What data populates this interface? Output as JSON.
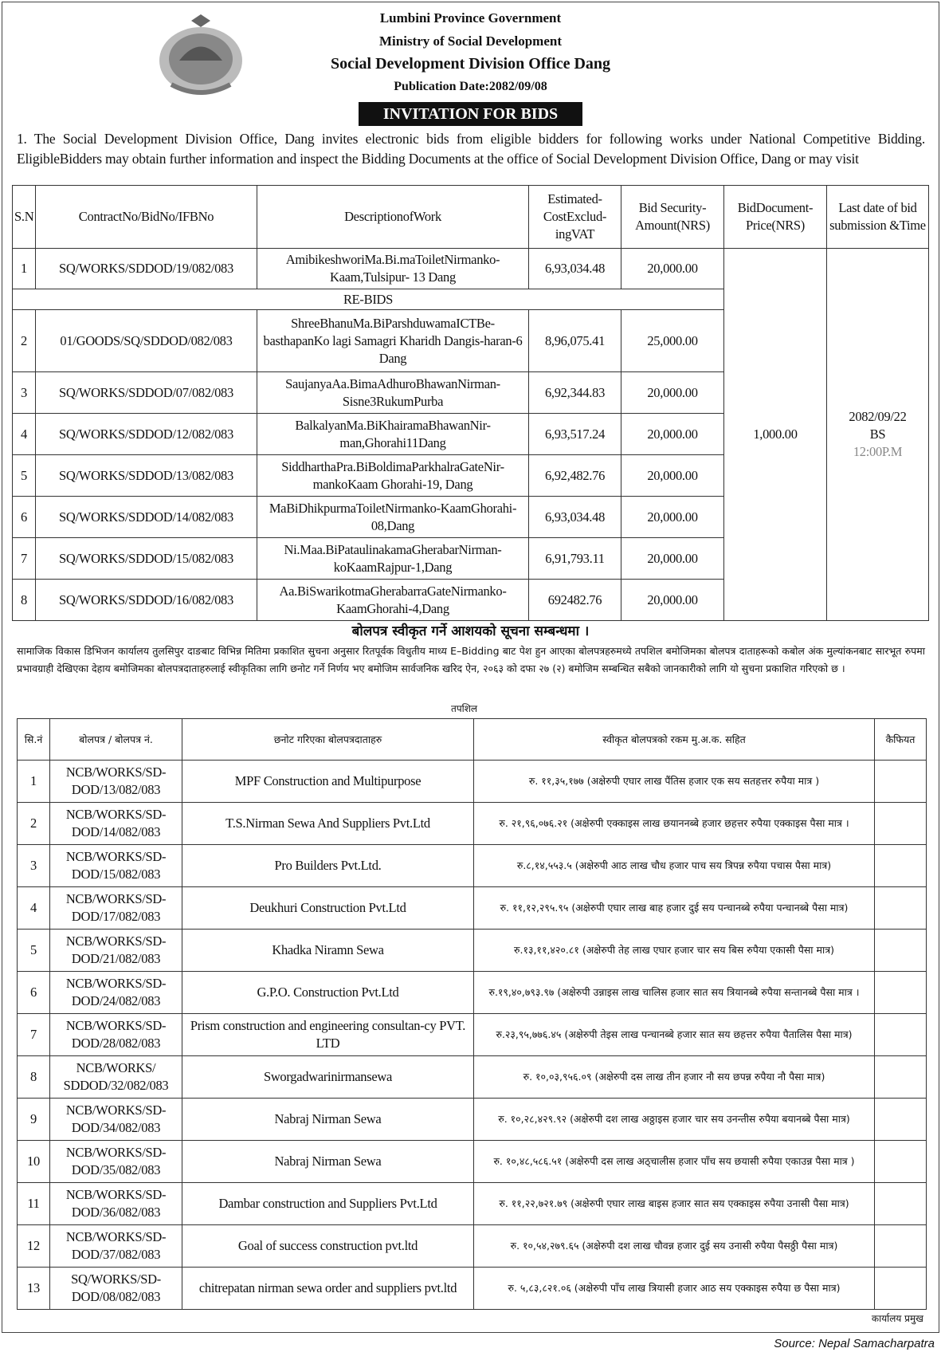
{
  "header": {
    "line1": "Lumbini Province Government",
    "line2": "Ministry of Social Development",
    "line3": "Social Development Division Office Dang",
    "publication": "Publication Date:2082/09/08",
    "banner": "INVITATION FOR BIDS"
  },
  "intro": "1.        The Social Development Division Office, Dang invites electronic bids from eligible bidders for following works under National Competitive Bidding. EligibleBidders may obtain further information and inspect the Bidding Documents at the office of Social Development Division Office, Dang or may visit",
  "bids_table": {
    "headers": [
      "S.N",
      "ContractNo/BidNo/IFBNo",
      "DescriptionofWork",
      "Estimated-CostExclud-ingVAT",
      "Bid Security-Amount(NRS)",
      "BidDocument-Price(NRS)",
      "Last date of bid submission &Time"
    ],
    "rebids_label": "RE-BIDS",
    "doc_price": "1,000.00",
    "last_date": "2082/09/22",
    "last_date_suffix": "BS",
    "last_time": "12:00P.M",
    "rows": [
      {
        "sn": "1",
        "contract": "SQ/WORKS/SDDOD/19/082/083",
        "desc": "AmibikeshworiMa.Bi.maToiletNirmanko-Kaam,Tulsipur- 13 Dang",
        "cost": "6,93,034.48",
        "security": "20,000.00"
      },
      {
        "sn": "2",
        "contract": "01/GOODS/SQ/SDDOD/082/083",
        "desc": "ShreeBhanuMa.BiParshduwamaICTBe-basthapanKo lagi Samagri Kharidh Dangis-haran-6 Dang",
        "cost": "8,96,075.41",
        "security": "25,000.00"
      },
      {
        "sn": "3",
        "contract": "SQ/WORKS/SDDOD/07/082/083",
        "desc": "SaujanyaAa.BimaAdhuroBhawanNirman-Sisne3RukumPurba",
        "cost": "6,92,344.83",
        "security": "20,000.00"
      },
      {
        "sn": "4",
        "contract": "SQ/WORKS/SDDOD/12/082/083",
        "desc": "BalkalyanMa.BiKhairamaBhawanNir-man,Ghorahi11Dang",
        "cost": "6,93,517.24",
        "security": "20,000.00"
      },
      {
        "sn": "5",
        "contract": "SQ/WORKS/SDDOD/13/082/083",
        "desc": "SiddharthaPra.BiBoldimaParkhalraGateNir-mankoKaam Ghorahi-19, Dang",
        "cost": "6,92,482.76",
        "security": "20,000.00"
      },
      {
        "sn": "6",
        "contract": "SQ/WORKS/SDDOD/14/082/083",
        "desc": "MaBiDhikpurmaToiletNirmanko-KaamGhorahi-08,Dang",
        "cost": "6,93,034.48",
        "security": "20,000.00"
      },
      {
        "sn": "7",
        "contract": "SQ/WORKS/SDDOD/15/082/083",
        "desc": "Ni.Maa.BiPataulinakamaGherabarNirman-koKaamRajpur-1,Dang",
        "cost": "6,91,793.11",
        "security": "20,000.00"
      },
      {
        "sn": "8",
        "contract": "SQ/WORKS/SDDOD/16/082/083",
        "desc": "Aa.BiSwarikotmaGherabarraGateNirmanko-KaamGhorahi-4,Dang",
        "cost": "692482.76",
        "security": "20,000.00"
      }
    ]
  },
  "notice": {
    "title": "बोलपत्र स्वीकृत गर्ने आशयको सूचना सम्बन्धमा ।",
    "body": "सामाजिक विकास डिभिजन कार्यालय तुलसिपुर दाङबाट विभिन्न मितिमा प्रकाशित सुचना अनुसार रितपूर्वक विधुतीय माध्य E–Bidding बाट पेश हुन आएका बोलपत्रहरुमध्ये तपशिल बमोजिमका बोलपत्र दाताहरूको कबोल अंक मुल्यांकनबाट सारभूत रुपमा प्रभावग्राही देखिएका देहाय बमोजिमका बोलपत्रदाताहरुलाई स्वीकृतिका लागि छनोट गर्ने निर्णय भए बमोजिम सार्वजनिक खरिद ऐन, २०६३ को दफा २७ (२) बमोजिम सम्बन्धित सबैको जानकारीको लागि यो सुचना प्रकाशित गरिएको छ ।",
    "schedule_label": "तपशिल"
  },
  "award_table": {
    "headers": [
      "सि.नं",
      "बोलपत्र / बोलपत्र नं.",
      "छनोट गरिएका बोलपत्रदाताहरु",
      "स्वीकृत बोलपत्रको रकम मु.अ.क. सहित",
      "कैफियत"
    ],
    "rows": [
      {
        "sn": "1",
        "bid": "NCB/WORKS/SD-DOD/13/082/083",
        "bidder": "MPF Construction and Multipurpose",
        "amount": "रु. ११,३५,१७७ (अक्षेरुपी एघार लाख पैंतिस हजार एक सय सतहत्तर रुपैया मात्र )"
      },
      {
        "sn": "2",
        "bid": "NCB/WORKS/SD-DOD/14/082/083",
        "bidder": "T.S.Nirman Sewa And Suppliers Pvt.Ltd",
        "amount": "रु. २१,९६,०७६.२१ (अक्षेरुपी एक्काइस लाख छयाननब्बे हजार छहत्तर रुपैया एक्काइस पैसा मात्र ।"
      },
      {
        "sn": "3",
        "bid": "NCB/WORKS/SD-DOD/15/082/083",
        "bidder": "Pro Builders Pvt.Ltd.",
        "amount": "रु.८,१४,५५३.५ (अक्षेरुपी आठ लाख चौध हजार पाच सय त्रिपन्न रुपैया पचास पैसा मात्र)"
      },
      {
        "sn": "4",
        "bid": "NCB/WORKS/SD-DOD/17/082/083",
        "bidder": "Deukhuri Construction Pvt.Ltd",
        "amount": "रु. ११,१२,२९५.९५ (अक्षेरुपी एघार लाख बाह हजार दुई सय पन्चानब्बे रुपैया पन्चानब्बे पैसा मात्र)"
      },
      {
        "sn": "5",
        "bid": "NCB/WORKS/SD-DOD/21/082/083",
        "bidder": "Khadka Niramn Sewa",
        "amount": "रु.१३,११,४२०.८१ (अक्षेरुपी तेह लाख एघार हजार चार सय बिस रुपैया एकासी पैसा मात्र)"
      },
      {
        "sn": "6",
        "bid": "NCB/WORKS/SD-DOD/24/082/083",
        "bidder": "G.P.O. Construction Pvt.Ltd",
        "amount": "रु.१९,४०,७९३.९७ (अक्षेरुपी उन्नाइस लाख चालिस हजार सात सय त्रियानब्बे रुपैया सन्तानब्बे पैसा मात्र ।"
      },
      {
        "sn": "7",
        "bid": "NCB/WORKS/SD-DOD/28/082/083",
        "bidder": "Prism construction and engineering consultan-cy PVT. LTD",
        "amount": "रु.२३,९५,७७६.४५ (अक्षेरुपी तेइस लाख पन्चानब्बे हजार सात सय छहत्तर रुपैया पैतालिस पैसा मात्र)"
      },
      {
        "sn": "8",
        "bid": "NCB/WORKS/ SDDOD/32/082/083",
        "bidder": "Sworgadwarinirmansewa",
        "amount": "रु. १०,०३,९५६.०९ (अक्षेरुपी दस लाख तीन हजार नौ सय छपन्न रुपैया नौ पैसा मात्र)"
      },
      {
        "sn": "9",
        "bid": "NCB/WORKS/SD-DOD/34/082/083",
        "bidder": "Nabraj Nirman Sewa",
        "amount": "रु. १०,२८,४२९.९२ (अक्षेरुपी दश लाख अठ्ठाइस हजार चार सय उनन्तीस रुपैया बयानब्बे पैसा मात्र)"
      },
      {
        "sn": "10",
        "bid": "NCB/WORKS/SD-DOD/35/082/083",
        "bidder": "Nabraj Nirman Sewa",
        "amount": "रु. १०,४८,५८६.५१ (अक्षेरुपी दस लाख अठ्चालीस हजार पाँच सय छयासी रुपैया एकाउन्न पैसा मात्र )"
      },
      {
        "sn": "11",
        "bid": "NCB/WORKS/SD-DOD/36/082/083",
        "bidder": "Dambar construction and Suppliers Pvt.Ltd",
        "amount": "रु. ११,२२,७२१.७९ (अक्षेरुपी एघार लाख बाइस हजार सात सय एक्काइस रुपैया उनासी पैसा मात्र)"
      },
      {
        "sn": "12",
        "bid": "NCB/WORKS/SD-DOD/37/082/083",
        "bidder": "Goal of success construction pvt.ltd",
        "amount": "रु. १०,५४,२७९.६५ (अक्षेरुपी दश लाख चौवन्न हजार दुई सय उनासी रुपैया पैसठ्ठी पैसा मात्र)"
      },
      {
        "sn": "13",
        "bid": "SQ/WORKS/SD-DOD/08/082/083",
        "bidder": "chitrepatan nirman sewa order and suppliers pvt.ltd",
        "amount": "रु. ५,८३,८२१.०६ (अक्षेरुपी पाँच लाख त्रियासी हजार आठ सय एक्काइस रुपैया छ पैसा मात्र)"
      }
    ]
  },
  "signature": "कार्यालय प्रमुख",
  "source": "Source: Nepal Samacharpatra"
}
